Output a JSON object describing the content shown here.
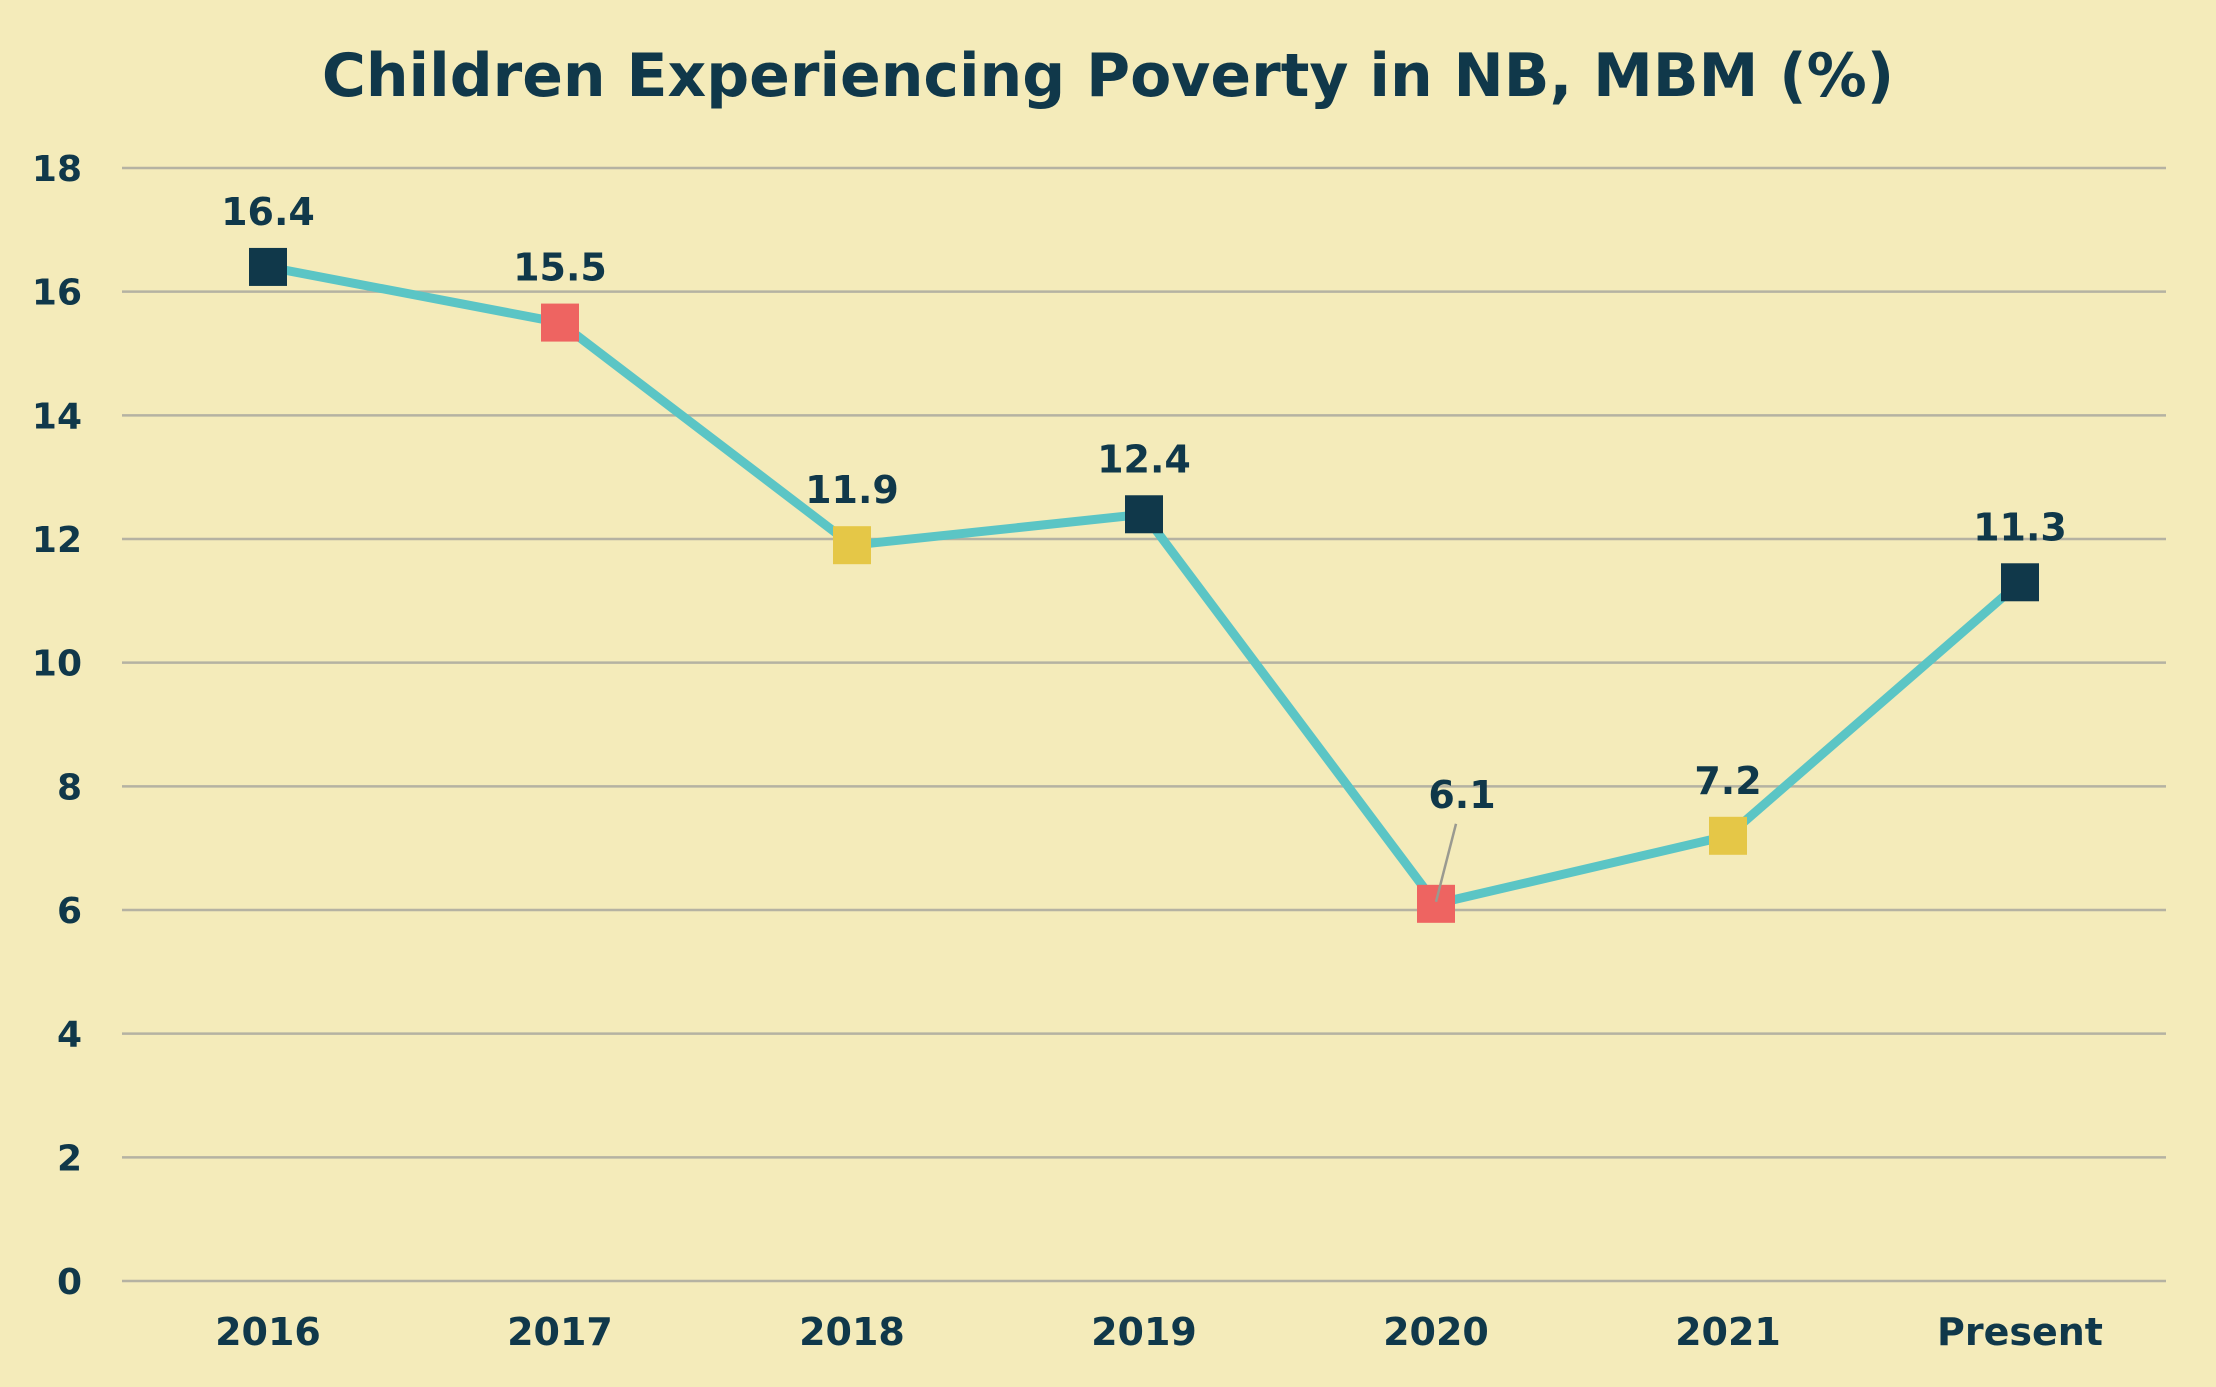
{
  "chart_data": {
    "type": "line",
    "title": "Children Experiencing Poverty in NB, MBM (%)",
    "xlabel": "",
    "ylabel": "",
    "categories": [
      "2016",
      "2017",
      "2018",
      "2019",
      "2020",
      "2021",
      "Present"
    ],
    "ylim": [
      0,
      18
    ],
    "yticks": [
      0,
      2,
      4,
      6,
      8,
      10,
      12,
      14,
      16,
      18
    ],
    "grid": true,
    "series": [
      {
        "name": "Children Experiencing Poverty",
        "values": [
          16.4,
          15.5,
          11.9,
          12.4,
          6.1,
          7.2,
          11.3
        ],
        "labels": [
          "16.4",
          "15.5",
          "11.9",
          "12.4",
          "6.1",
          "7.2",
          "11.3"
        ],
        "line_color": "#5BC5C5",
        "marker_colors": [
          "#10384A",
          "#EE6461",
          "#E5C747",
          "#10384A",
          "#EE6461",
          "#E5C747",
          "#10384A"
        ]
      }
    ]
  },
  "colors": {
    "background": "#F4EBBA",
    "text": "#10384A",
    "grid": "#B5B2A2",
    "leader_line": "#9A9A90"
  }
}
